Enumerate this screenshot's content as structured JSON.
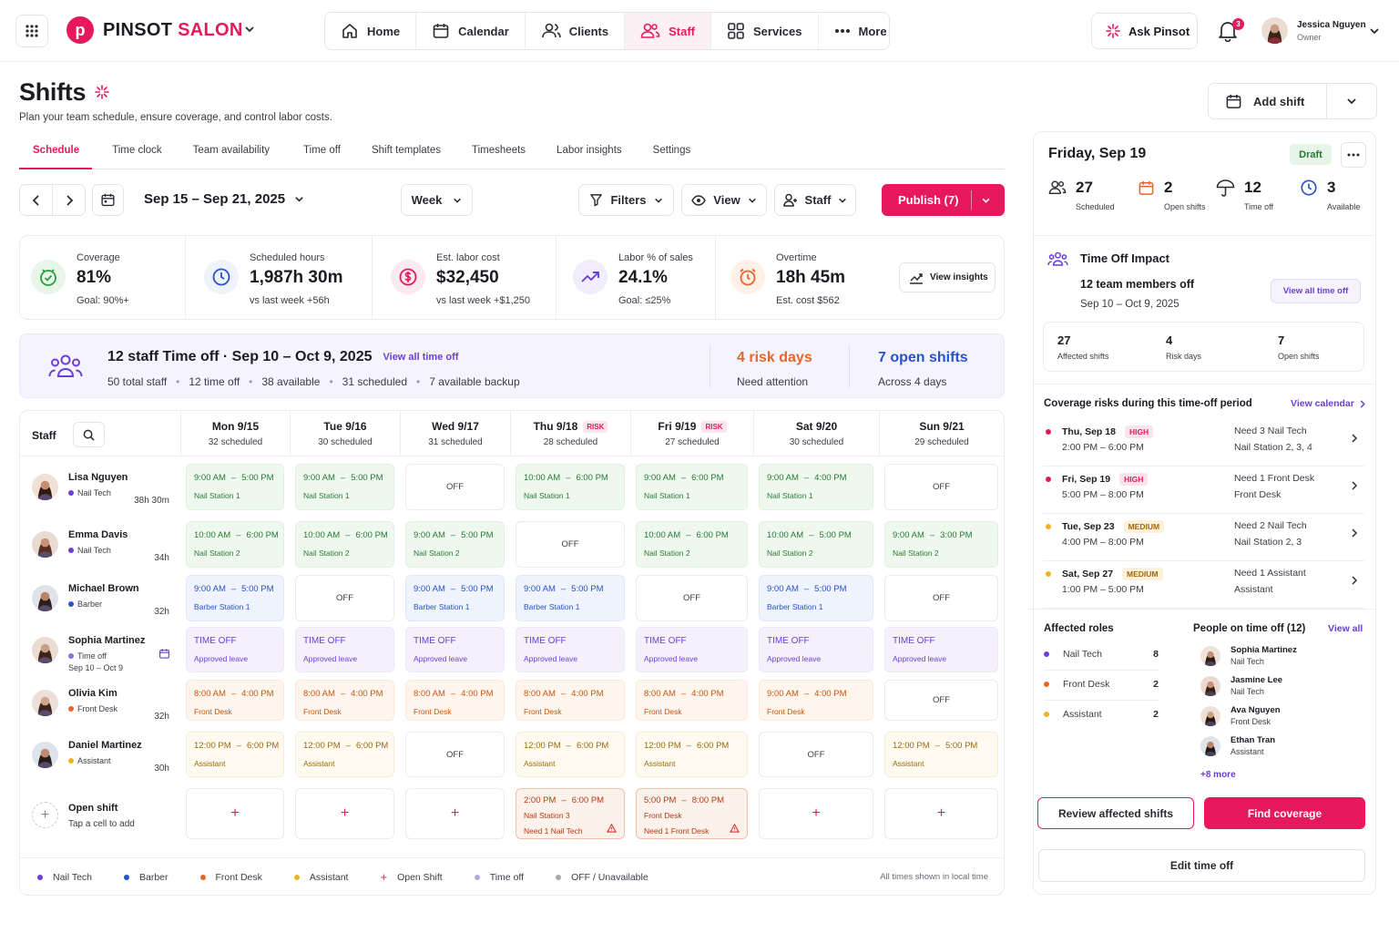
{
  "topbar": {
    "brand_a": "PINSOT",
    "brand_b": "SALON",
    "logo_letter": "p",
    "nav": [
      {
        "label": "Home",
        "icon": "home-icon"
      },
      {
        "label": "Calendar",
        "icon": "calendar-icon"
      },
      {
        "label": "Clients",
        "icon": "clients-icon"
      },
      {
        "label": "Staff",
        "icon": "staff-icon",
        "active": true
      },
      {
        "label": "Services",
        "icon": "services-icon"
      },
      {
        "label": "More",
        "icon": "more-icon"
      }
    ],
    "ask": "Ask Pinsot",
    "notifications": "3",
    "user_name": "Jessica Nguyen",
    "user_role": "Owner"
  },
  "header": {
    "title": "Shifts",
    "subtitle": "Plan your team schedule, ensure coverage, and control labor costs.",
    "add_shift": "Add shift"
  },
  "tabs": [
    "Schedule",
    "Time clock",
    "Team availability",
    "Time off",
    "Shift templates",
    "Timesheets",
    "Labor insights",
    "Settings"
  ],
  "toolbar": {
    "range": "Sep 15 – Sep 21, 2025",
    "week": "Week",
    "filters": "Filters",
    "view": "View",
    "staff": "Staff",
    "publish": "Publish (7)"
  },
  "kpis": [
    {
      "label": "Coverage",
      "value": "81%",
      "note": "Goal: 90%+"
    },
    {
      "label": "Scheduled hours",
      "value": "1,987h 30m",
      "note": "vs last week +56h"
    },
    {
      "label": "Est. labor cost",
      "value": "$32,450",
      "note": "vs last week +$1,250"
    },
    {
      "label": "Labor % of sales",
      "value": "24.1%",
      "note": "Goal: ≤25%"
    },
    {
      "label": "Overtime",
      "value": "18h 45m",
      "note": "Est. cost $562"
    }
  ],
  "view_insights": "View insights",
  "banner": {
    "title": "12 staff Time off · Sep 10 – Oct 9, 2025",
    "link": "View all time off",
    "stats": [
      "50 total staff",
      "12 time off",
      "38 available",
      "31 scheduled",
      "7 available backup"
    ],
    "risk_value": "4 risk days",
    "risk_label": "Need attention",
    "open_value": "7 open shifts",
    "open_label": "Across 4 days"
  },
  "schedule": {
    "staff_label": "Staff",
    "days": [
      {
        "day": "Mon 9/15",
        "sched": "32 scheduled",
        "risk": ""
      },
      {
        "day": "Tue 9/16",
        "sched": "30 scheduled",
        "risk": ""
      },
      {
        "day": "Wed 9/17",
        "sched": "31 scheduled",
        "risk": ""
      },
      {
        "day": "Thu 9/18",
        "sched": "28 scheduled",
        "risk": "RISK"
      },
      {
        "day": "Fri 9/19",
        "sched": "27 scheduled",
        "risk": "RISK"
      },
      {
        "day": "Sat 9/20",
        "sched": "30 scheduled",
        "risk": ""
      },
      {
        "day": "Sun 9/21",
        "sched": "29 scheduled",
        "risk": ""
      }
    ],
    "staff": [
      {
        "name": "Lisa Nguyen",
        "role": "Nail Tech",
        "hours": "38h 30m",
        "color": "#6b3fd6"
      },
      {
        "name": "Emma Davis",
        "role": "Nail Tech",
        "hours": "34h",
        "color": "#6b3fd6"
      },
      {
        "name": "Michael Brown",
        "role": "Barber",
        "hours": "32h",
        "color": "#2753c9"
      },
      {
        "name": "Sophia Martinez",
        "role": "Time off",
        "sub": "Sep 10 – Oct 9",
        "hours": "",
        "color": "#8b6ee0"
      },
      {
        "name": "Olivia Kim",
        "role": "Front Desk",
        "hours": "32h",
        "color": "#e8652a"
      },
      {
        "name": "Daniel Martinez",
        "role": "Assistant",
        "hours": "30h",
        "color": "#f1b31c"
      }
    ],
    "rows": [
      [
        {
          "k": "green",
          "a": "9:00 AM",
          "b": "5:00 PM",
          "l": "Nail Station 1"
        },
        {
          "k": "green",
          "a": "9:00 AM",
          "b": "5:00 PM",
          "l": "Nail Station 1"
        },
        {
          "k": "off",
          "l": "OFF"
        },
        {
          "k": "green",
          "a": "10:00 AM",
          "b": "6:00 PM",
          "l": "Nail Station 1"
        },
        {
          "k": "green",
          "a": "9:00 AM",
          "b": "6:00 PM",
          "l": "Nail Station 1"
        },
        {
          "k": "green",
          "a": "9:00 AM",
          "b": "4:00 PM",
          "l": "Nail Station 1"
        },
        {
          "k": "off",
          "l": "OFF"
        }
      ],
      [
        {
          "k": "green",
          "a": "10:00 AM",
          "b": "6:00 PM",
          "l": "Nail Station 2"
        },
        {
          "k": "green",
          "a": "10:00 AM",
          "b": "6:00 PM",
          "l": "Nail Station 2"
        },
        {
          "k": "green",
          "a": "9:00 AM",
          "b": "5:00 PM",
          "l": "Nail Station 2"
        },
        {
          "k": "off",
          "l": "OFF"
        },
        {
          "k": "green",
          "a": "10:00 AM",
          "b": "6:00 PM",
          "l": "Nail Station 2"
        },
        {
          "k": "green",
          "a": "10:00 AM",
          "b": "5:00 PM",
          "l": "Nail Station 2"
        },
        {
          "k": "green",
          "a": "9:00 AM",
          "b": "3:00 PM",
          "l": "Nail Station 2"
        }
      ],
      [
        {
          "k": "blue",
          "a": "9:00 AM",
          "b": "5:00 PM",
          "l": "Barber Station 1"
        },
        {
          "k": "off",
          "l": "OFF"
        },
        {
          "k": "blue",
          "a": "9:00 AM",
          "b": "5:00 PM",
          "l": "Barber Station 1"
        },
        {
          "k": "blue",
          "a": "9:00 AM",
          "b": "5:00 PM",
          "l": "Barber Station 1"
        },
        {
          "k": "off",
          "l": "OFF"
        },
        {
          "k": "blue",
          "a": "9:00 AM",
          "b": "5:00 PM",
          "l": "Barber Station 1"
        },
        {
          "k": "off",
          "l": "OFF"
        }
      ],
      [
        {
          "k": "purple",
          "a": "TIME OFF",
          "l": "Approved leave"
        },
        {
          "k": "purple",
          "a": "TIME OFF",
          "l": "Approved leave"
        },
        {
          "k": "purple",
          "a": "TIME OFF",
          "l": "Approved leave"
        },
        {
          "k": "purple",
          "a": "TIME OFF",
          "l": "Approved leave"
        },
        {
          "k": "purple",
          "a": "TIME OFF",
          "l": "Approved leave"
        },
        {
          "k": "purple",
          "a": "TIME OFF",
          "l": "Approved leave"
        },
        {
          "k": "purple",
          "a": "TIME OFF",
          "l": "Approved leave"
        }
      ],
      [
        {
          "k": "orange",
          "a": "8:00 AM",
          "b": "4:00 PM",
          "l": "Front Desk"
        },
        {
          "k": "orange",
          "a": "8:00 AM",
          "b": "4:00 PM",
          "l": "Front Desk"
        },
        {
          "k": "orange",
          "a": "8:00 AM",
          "b": "4:00 PM",
          "l": "Front Desk"
        },
        {
          "k": "orange",
          "a": "8:00 AM",
          "b": "4:00 PM",
          "l": "Front Desk"
        },
        {
          "k": "orange",
          "a": "8:00 AM",
          "b": "4:00 PM",
          "l": "Front Desk"
        },
        {
          "k": "orange",
          "a": "9:00 AM",
          "b": "4:00 PM",
          "l": "Front Desk"
        },
        {
          "k": "off",
          "l": "OFF"
        }
      ],
      [
        {
          "k": "yellow",
          "a": "12:00 PM",
          "b": "6:00 PM",
          "l": "Assistant"
        },
        {
          "k": "yellow",
          "a": "12:00 PM",
          "b": "6:00 PM",
          "l": "Assistant"
        },
        {
          "k": "off",
          "l": "OFF"
        },
        {
          "k": "yellow",
          "a": "12:00 PM",
          "b": "6:00 PM",
          "l": "Assistant"
        },
        {
          "k": "yellow",
          "a": "12:00 PM",
          "b": "6:00 PM",
          "l": "Assistant"
        },
        {
          "k": "off",
          "l": "OFF"
        },
        {
          "k": "yellow",
          "a": "12:00 PM",
          "b": "5:00 PM",
          "l": "Assistant"
        }
      ]
    ],
    "open_title": "Open shift",
    "open_sub": "Tap a cell to add",
    "open_cells": [
      {
        "k": "open"
      },
      {
        "k": "open"
      },
      {
        "k": "open"
      },
      {
        "k": "openrisk",
        "a": "2:00 PM",
        "b": "6:00 PM",
        "l": "Nail Station 3",
        "n": "Need 1 Nail Tech"
      },
      {
        "k": "openrisk",
        "a": "5:00 PM",
        "b": "8:00 PM",
        "l": "Front Desk",
        "n": "Need 1 Front Desk"
      },
      {
        "k": "open"
      },
      {
        "k": "open"
      }
    ],
    "legend": [
      {
        "label": "Nail Tech",
        "color": "#6b3fd6"
      },
      {
        "label": "Barber",
        "color": "#2753c9"
      },
      {
        "label": "Front Desk",
        "color": "#e8652a"
      },
      {
        "label": "Assistant",
        "color": "#f1b31c"
      },
      {
        "label": "Open Shift",
        "color": "#e6195f",
        "plus": true
      },
      {
        "label": "Time off",
        "color": "#b9a6ee"
      },
      {
        "label": "OFF / Unavailable",
        "color": "#a9a7b3"
      }
    ],
    "tz_note": "All times shown in local time"
  },
  "panel": {
    "date": "Friday, Sep 19",
    "status": "Draft",
    "stats": [
      {
        "v": "27",
        "l": "Scheduled"
      },
      {
        "v": "2",
        "l": "Open shifts"
      },
      {
        "v": "12",
        "l": "Time off"
      },
      {
        "v": "3",
        "l": "Available"
      }
    ],
    "toi_title": "Time Off Impact",
    "toi_members": "12 team members off",
    "toi_range": "Sep 10 – Oct 9, 2025",
    "toi_link": "View all time off",
    "mini": [
      {
        "v": "27",
        "l": "Affected shifts"
      },
      {
        "v": "4",
        "l": "Risk days"
      },
      {
        "v": "7",
        "l": "Open shifts"
      }
    ],
    "cov_title": "Coverage risks during this time-off period",
    "cov_link": "View calendar",
    "risks": [
      {
        "date": "Thu, Sep 18",
        "level": "HIGH",
        "time": "2:00 PM – 6:00 PM",
        "need": "Need 3 Nail Tech",
        "where": "Nail Station 2, 3, 4",
        "color": "#e6195f"
      },
      {
        "date": "Fri, Sep 19",
        "level": "HIGH",
        "time": "5:00 PM – 8:00 PM",
        "need": "Need 1 Front Desk",
        "where": "Front Desk",
        "color": "#e6195f"
      },
      {
        "date": "Tue, Sep 23",
        "level": "MEDIUM",
        "time": "4:00 PM – 8:00 PM",
        "need": "Need 2 Nail Tech",
        "where": "Nail Station 2, 3",
        "color": "#f1b31c"
      },
      {
        "date": "Sat, Sep 27",
        "level": "MEDIUM",
        "time": "1:00 PM – 5:00 PM",
        "need": "Need 1 Assistant",
        "where": "Assistant",
        "color": "#f1b31c"
      }
    ],
    "roles_title": "Affected roles",
    "roles": [
      {
        "name": "Nail Tech",
        "count": "8",
        "color": "#6b3fd6"
      },
      {
        "name": "Front Desk",
        "count": "2",
        "color": "#e8652a"
      },
      {
        "name": "Assistant",
        "count": "2",
        "color": "#f1b31c"
      }
    ],
    "people_title": "People on time off (12)",
    "people_link": "View all",
    "people": [
      {
        "name": "Sophia Martinez",
        "role": "Nail Tech"
      },
      {
        "name": "Jasmine Lee",
        "role": "Nail Tech"
      },
      {
        "name": "Ava Nguyen",
        "role": "Front Desk"
      },
      {
        "name": "Ethan Tran",
        "role": "Assistant"
      }
    ],
    "more": "+8 more",
    "review": "Review affected shifts",
    "find": "Find coverage",
    "edit": "Edit time off"
  }
}
